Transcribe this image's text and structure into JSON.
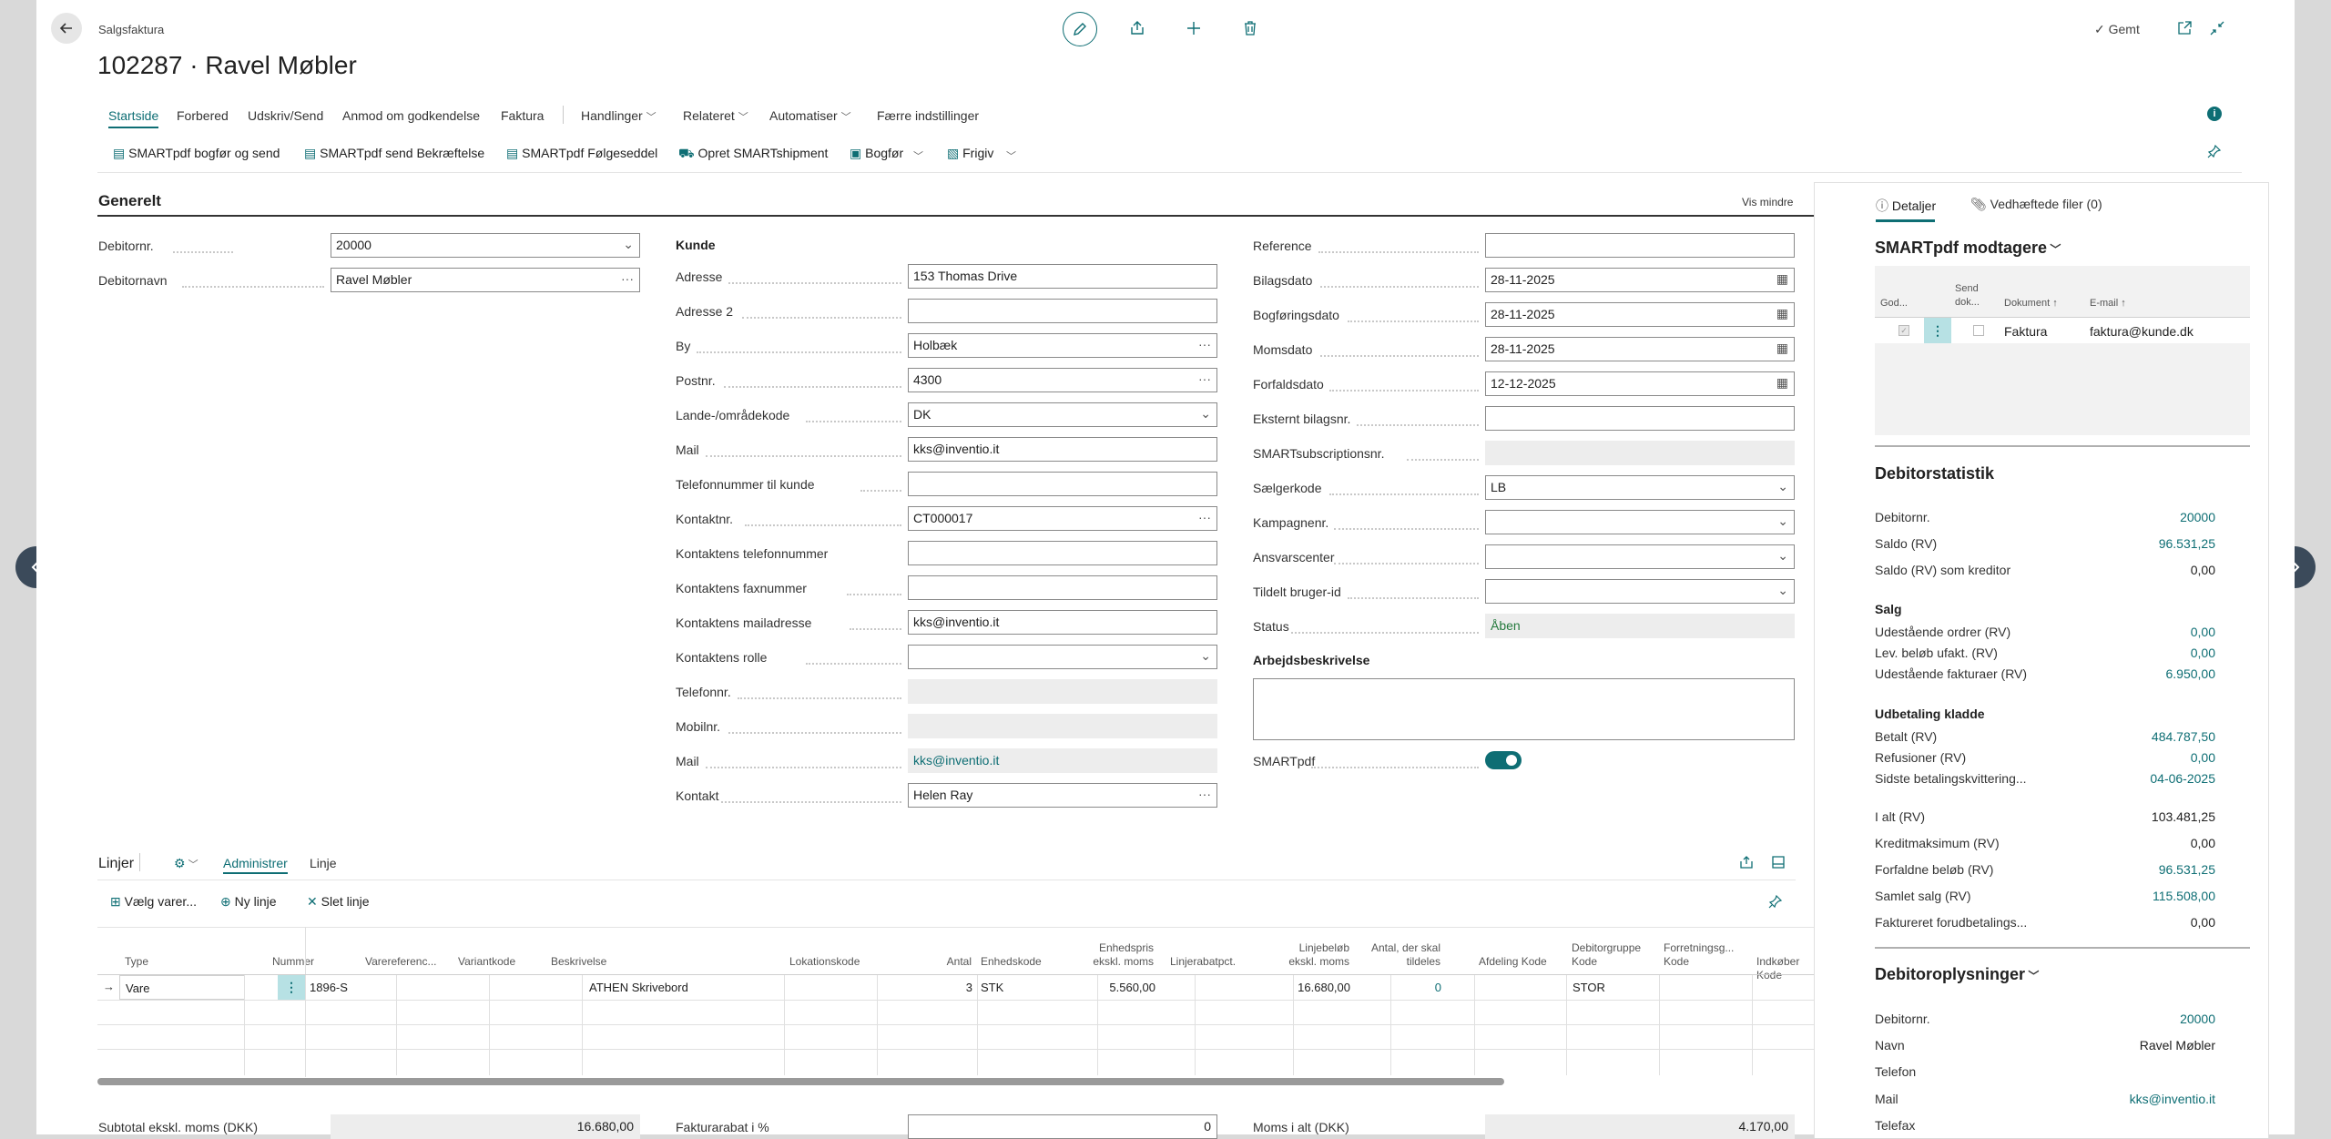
{
  "header": {
    "page_type": "Salgsfaktura",
    "title": "102287 · Ravel Møbler",
    "saved": "Gemt"
  },
  "menu": {
    "tabs": [
      "Startside",
      "Forbered",
      "Udskriv/Send",
      "Anmod om godkendelse",
      "Faktura",
      "Handlinger",
      "Relateret",
      "Automatiser",
      "Færre indstillinger"
    ]
  },
  "actions": {
    "a1": "SMARTpdf bogfør og send",
    "a2": "SMARTpdf send Bekræftelse",
    "a3": "SMARTpdf Følgeseddel",
    "a4": "Opret SMARTshipment",
    "a5": "Bogfør",
    "a6": "Frigiv"
  },
  "general": {
    "title": "Generelt",
    "show_less": "Vis mindre",
    "debitornr_label": "Debitornr.",
    "debitornr": "20000",
    "debitornavn_label": "Debitornavn",
    "debitornavn": "Ravel Møbler"
  },
  "customer": {
    "heading": "Kunde",
    "adresse_l": "Adresse",
    "adresse": "153 Thomas Drive",
    "adresse2_l": "Adresse 2",
    "adresse2": "",
    "by_l": "By",
    "by": "Holbæk",
    "postnr_l": "Postnr.",
    "postnr": "4300",
    "land_l": "Lande-/områdekode",
    "land": "DK",
    "mail_l": "Mail",
    "mail": "kks@inventio.it",
    "tlf_kunde_l": "Telefonnummer til kunde",
    "tlf_kunde": "",
    "kontaktnr_l": "Kontaktnr.",
    "kontaktnr": "CT000017",
    "k_tlf_l": "Kontaktens telefonnummer",
    "k_tlf": "",
    "k_fax_l": "Kontaktens faxnummer",
    "k_fax": "",
    "k_mail_l": "Kontaktens mailadresse",
    "k_mail": "kks@inventio.it",
    "k_rolle_l": "Kontaktens rolle",
    "k_rolle": "",
    "telefonnr_l": "Telefonnr.",
    "telefonnr": "",
    "mobilnr_l": "Mobilnr.",
    "mobilnr": "",
    "mail2_l": "Mail",
    "mail2": "kks@inventio.it",
    "kontakt_l": "Kontakt",
    "kontakt": "Helen Ray"
  },
  "invoice": {
    "reference_l": "Reference",
    "reference": "",
    "bilagsdato_l": "Bilagsdato",
    "bilagsdato": "28-11-2025",
    "bogfdato_l": "Bogføringsdato",
    "bogfdato": "28-11-2025",
    "momsdato_l": "Momsdato",
    "momsdato": "28-11-2025",
    "forfald_l": "Forfaldsdato",
    "forfald": "12-12-2025",
    "ekstern_l": "Eksternt bilagsnr.",
    "ekstern": "",
    "smartsub_l": "SMARTsubscriptionsnr.",
    "smartsub": "",
    "saelger_l": "Sælgerkode",
    "saelger": "LB",
    "kampagne_l": "Kampagnenr.",
    "kampagne": "",
    "ansvar_l": "Ansvarscenter",
    "ansvar": "",
    "tildelt_l": "Tildelt bruger-id",
    "tildelt": "",
    "status_l": "Status",
    "status": "Åben",
    "arbejd_l": "Arbejdsbeskrivelse",
    "smartpdf_l": "SMARTpdf"
  },
  "lines": {
    "title": "Linjer",
    "tab_admin": "Administrer",
    "tab_line": "Linje",
    "act_choose": "Vælg varer...",
    "act_new": "Ny linje",
    "act_delete": "Slet linje",
    "columns": [
      "Type",
      "Nummer",
      "Varereferenc...",
      "Variantkode",
      "Beskrivelse",
      "Lokationskode",
      "Antal",
      "Enhedskode",
      "Enhedspris ekskl. moms",
      "Linjerabatpct.",
      "Linjebeløb ekskl. moms",
      "Antal, der skal tildeles",
      "Afdeling Kode",
      "Debitorgruppe Kode",
      "Forretningsg... Kode",
      "Indkøber Kode"
    ],
    "row": {
      "type": "Vare",
      "nummer": "1896-S",
      "beskrivelse": "ATHEN Skrivebord",
      "antal": "3",
      "enhed": "STK",
      "enhedspris": "5.560,00",
      "linjebeloeb": "16.680,00",
      "tildeles": "0",
      "debgruppe": "STOR"
    }
  },
  "totals": {
    "subtotal_l": "Subtotal ekskl. moms (DKK)",
    "subtotal": "16.680,00",
    "rabat_l": "Fakturarabat i %",
    "rabat": "0",
    "moms_l": "Moms i alt (DKK)",
    "moms": "4.170,00"
  },
  "factbox": {
    "tab_details": "Detaljer",
    "tab_files": "Vedhæftede filer (0)",
    "smart_title": "SMARTpdf modtagere",
    "smart_cols": {
      "god": "God...",
      "send": "Send dok...",
      "dok": "Dokument",
      "email": "E-mail"
    },
    "smart_row": {
      "dok": "Faktura",
      "email": "faktura@kunde.dk"
    },
    "stat_title": "Debitorstatistik",
    "stats": [
      {
        "l": "Debitornr.",
        "v": "20000"
      },
      {
        "l": "Saldo (RV)",
        "v": "96.531,25"
      },
      {
        "l": "Saldo (RV) som kreditor",
        "v": "0,00"
      },
      {
        "l": "Salg",
        "v": ""
      },
      {
        "l": "Udestående ordrer (RV)",
        "v": "0,00"
      },
      {
        "l": "Lev. beløb ufakt. (RV)",
        "v": "0,00"
      },
      {
        "l": "Udestående fakturaer (RV)",
        "v": "6.950,00"
      },
      {
        "l": "Udbetaling kladde",
        "v": ""
      },
      {
        "l": "Betalt (RV)",
        "v": "484.787,50"
      },
      {
        "l": "Refusioner (RV)",
        "v": "0,00"
      },
      {
        "l": "Sidste betalingskvittering...",
        "v": "04-06-2025"
      },
      {
        "l": "I alt (RV)",
        "v": "103.481,25"
      },
      {
        "l": "Kreditmaksimum (RV)",
        "v": "0,00"
      },
      {
        "l": "Forfaldne beløb (RV)",
        "v": "96.531,25"
      },
      {
        "l": "Samlet salg (RV)",
        "v": "115.508,00"
      },
      {
        "l": "Faktureret forudbetalings...",
        "v": "0,00"
      }
    ],
    "info_title": "Debitoroplysninger",
    "info": [
      {
        "l": "Debitornr.",
        "v": "20000"
      },
      {
        "l": "Navn",
        "v": "Ravel Møbler"
      },
      {
        "l": "Telefon",
        "v": ""
      },
      {
        "l": "Mail",
        "v": "kks@inventio.it"
      },
      {
        "l": "Telefax",
        "v": ""
      }
    ]
  },
  "colors": {
    "accent": "#0e6e74",
    "link": "#0e6e74",
    "status_green": "#257a3e"
  }
}
